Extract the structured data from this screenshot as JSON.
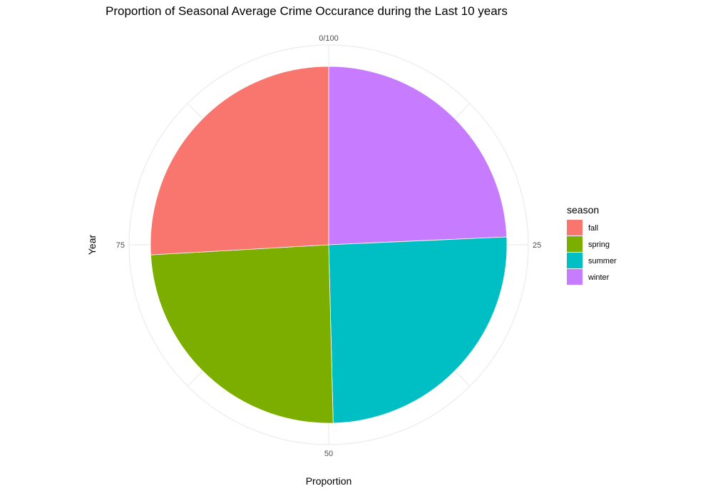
{
  "chart_data": {
    "type": "pie",
    "title": "Proportion of Seasonal Average Crime Occurance during the Last 10 years",
    "xlabel": "Proportion",
    "ylabel": "Year",
    "theta_ticks": [
      {
        "value": 0,
        "label": "0/100"
      },
      {
        "value": 25,
        "label": "25"
      },
      {
        "value": 50,
        "label": "50"
      },
      {
        "value": 75,
        "label": "75"
      }
    ],
    "legend": {
      "title": "season",
      "position": "right"
    },
    "grid": true,
    "slices": [
      {
        "label": "winter",
        "value": 24.3,
        "color": "#C77CFF"
      },
      {
        "label": "summer",
        "value": 25.3,
        "color": "#00BFC4"
      },
      {
        "label": "spring",
        "value": 24.5,
        "color": "#7CAE00"
      },
      {
        "label": "fall",
        "value": 25.9,
        "color": "#F8766D"
      }
    ],
    "legend_order": [
      "fall",
      "spring",
      "summer",
      "winter"
    ]
  }
}
